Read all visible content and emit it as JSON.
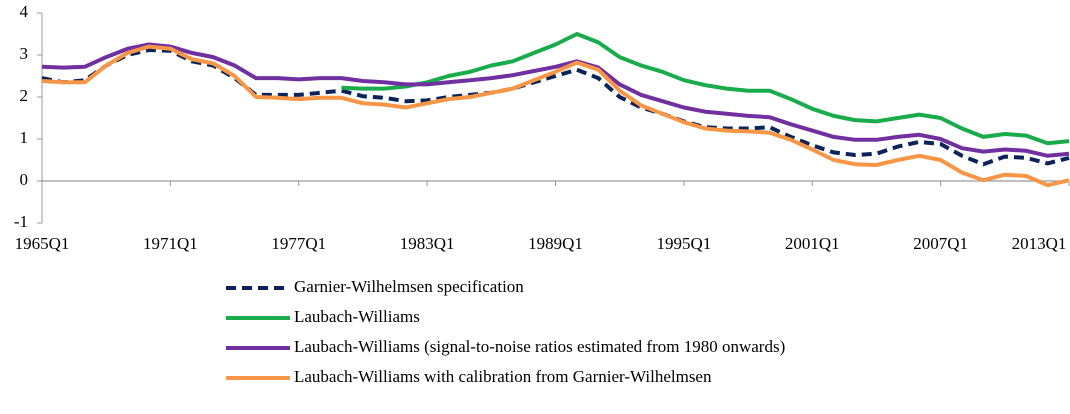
{
  "chart_data": {
    "type": "line",
    "categories": [
      "1965Q1",
      null,
      null,
      null,
      null,
      null,
      "1971Q1",
      null,
      null,
      null,
      null,
      null,
      "1977Q1",
      null,
      null,
      null,
      null,
      null,
      "1983Q1",
      null,
      null,
      null,
      null,
      null,
      "1989Q1",
      null,
      null,
      null,
      null,
      null,
      "1995Q1",
      null,
      null,
      null,
      null,
      null,
      "2001Q1",
      null,
      null,
      null,
      null,
      null,
      "2007Q1",
      null,
      null,
      null,
      null,
      null,
      "2013Q1"
    ],
    "series": [
      {
        "name": "Garnier-Wilhelmsen specification",
        "color": "#0a2459",
        "dashed": true,
        "values": [
          2.45,
          2.35,
          2.4,
          2.75,
          3.0,
          3.12,
          3.1,
          2.85,
          2.75,
          2.45,
          2.05,
          2.05,
          2.05,
          2.1,
          2.15,
          2.02,
          1.98,
          1.9,
          1.92,
          2.0,
          2.05,
          2.1,
          2.2,
          2.35,
          2.5,
          2.65,
          2.45,
          2.0,
          1.75,
          1.6,
          1.42,
          1.28,
          1.25,
          1.25,
          1.28,
          1.05,
          0.85,
          0.68,
          0.62,
          0.65,
          0.82,
          0.93,
          0.88,
          0.6,
          0.4,
          0.58,
          0.55,
          0.42,
          0.55
        ]
      },
      {
        "name": "Laubach-Williams",
        "color": "#1aab4b",
        "dashed": false,
        "values": [
          null,
          null,
          null,
          null,
          null,
          null,
          null,
          null,
          null,
          null,
          null,
          null,
          null,
          null,
          2.22,
          2.2,
          2.2,
          2.25,
          2.35,
          2.5,
          2.6,
          2.75,
          2.85,
          3.05,
          3.25,
          3.5,
          3.3,
          2.95,
          2.75,
          2.6,
          2.4,
          2.28,
          2.2,
          2.15,
          2.15,
          1.95,
          1.72,
          1.55,
          1.45,
          1.42,
          1.5,
          1.58,
          1.5,
          1.25,
          1.05,
          1.12,
          1.08,
          0.9,
          0.95
        ]
      },
      {
        "name": "Laubach-Williams (signal-to-noise ratios estimated from 1980 onwards)",
        "color": "#7030a0",
        "dashed": false,
        "values": [
          2.72,
          2.7,
          2.72,
          2.95,
          3.15,
          3.25,
          3.2,
          3.05,
          2.95,
          2.75,
          2.45,
          2.45,
          2.42,
          2.45,
          2.45,
          2.38,
          2.35,
          2.3,
          2.3,
          2.35,
          2.4,
          2.45,
          2.52,
          2.62,
          2.72,
          2.85,
          2.7,
          2.3,
          2.05,
          1.9,
          1.75,
          1.65,
          1.6,
          1.55,
          1.52,
          1.35,
          1.2,
          1.05,
          0.98,
          0.98,
          1.05,
          1.1,
          1.0,
          0.78,
          0.7,
          0.75,
          0.72,
          0.6,
          0.65
        ]
      },
      {
        "name": "Laubach-Williams with calibration from Garnier-Wilhelmsen",
        "color": "#f79646",
        "dashed": false,
        "values": [
          2.38,
          2.35,
          2.35,
          2.75,
          3.05,
          3.2,
          3.15,
          2.9,
          2.8,
          2.5,
          2.0,
          1.98,
          1.95,
          1.98,
          1.98,
          1.85,
          1.82,
          1.75,
          1.85,
          1.95,
          2.0,
          2.1,
          2.2,
          2.4,
          2.6,
          2.82,
          2.65,
          2.15,
          1.8,
          1.6,
          1.4,
          1.25,
          1.2,
          1.18,
          1.15,
          0.98,
          0.75,
          0.5,
          0.4,
          0.38,
          0.5,
          0.6,
          0.5,
          0.2,
          0.02,
          0.15,
          0.12,
          -0.1,
          0.02
        ]
      }
    ],
    "ylim": [
      -1,
      4
    ],
    "yticks": [
      -1,
      0,
      1,
      2,
      3,
      4
    ]
  }
}
